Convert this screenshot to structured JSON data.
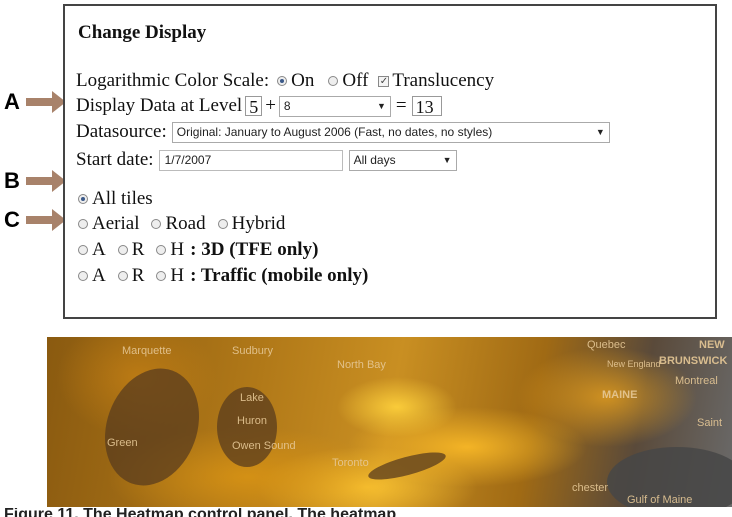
{
  "annotations": {
    "a": "A",
    "b": "B",
    "c": "C"
  },
  "panel": {
    "title": "Change Display",
    "log_scale": {
      "label": "Logarithmic Color Scale:",
      "on_label": "On",
      "off_label": "Off",
      "selected": "On"
    },
    "translucency": {
      "label": "Translucency",
      "checked": true,
      "check_glyph": "✓"
    },
    "level": {
      "label": "Display Data at Level",
      "base": "5",
      "plus": "+",
      "offset": "8",
      "equals": "=",
      "result": "13"
    },
    "datasource": {
      "label": "Datasource:",
      "value": "Original: January to August 2006 (Fast, no dates, no styles)"
    },
    "start_date": {
      "label": "Start date:",
      "value": "1/7/2007",
      "range_value": "All days"
    },
    "tiles": {
      "all_tiles": "All tiles",
      "all_selected": true
    },
    "map_type": {
      "aerial": "Aerial",
      "road": "Road",
      "hybrid": "Hybrid"
    },
    "three_d": {
      "a": "A",
      "r": "R",
      "h": "H",
      "label": ": 3D (TFE only)"
    },
    "traffic": {
      "a": "A",
      "r": "R",
      "h": "H",
      "label": ": Traffic (mobile only)"
    }
  },
  "map": {
    "labels": {
      "marquette": "Marquette",
      "sudbury": "Sudbury",
      "north_bay": "North Bay",
      "lake_huron": "Lake",
      "huron": "Huron",
      "owen_sound": "Owen Sound",
      "toronto": "Toronto",
      "quebec": "Quebec",
      "new_england": "New England",
      "maine": "MAINE",
      "new_brunswick_1": "NEW",
      "new_brunswick_2": "BRUNSWICK",
      "montreal": "Montreal",
      "chester": "chester",
      "gulf_of_maine": "Gulf of Maine",
      "green": "Green",
      "saint": "Saint"
    }
  },
  "caption": "Figure 11. The Heatmap control panel. The heatmap"
}
